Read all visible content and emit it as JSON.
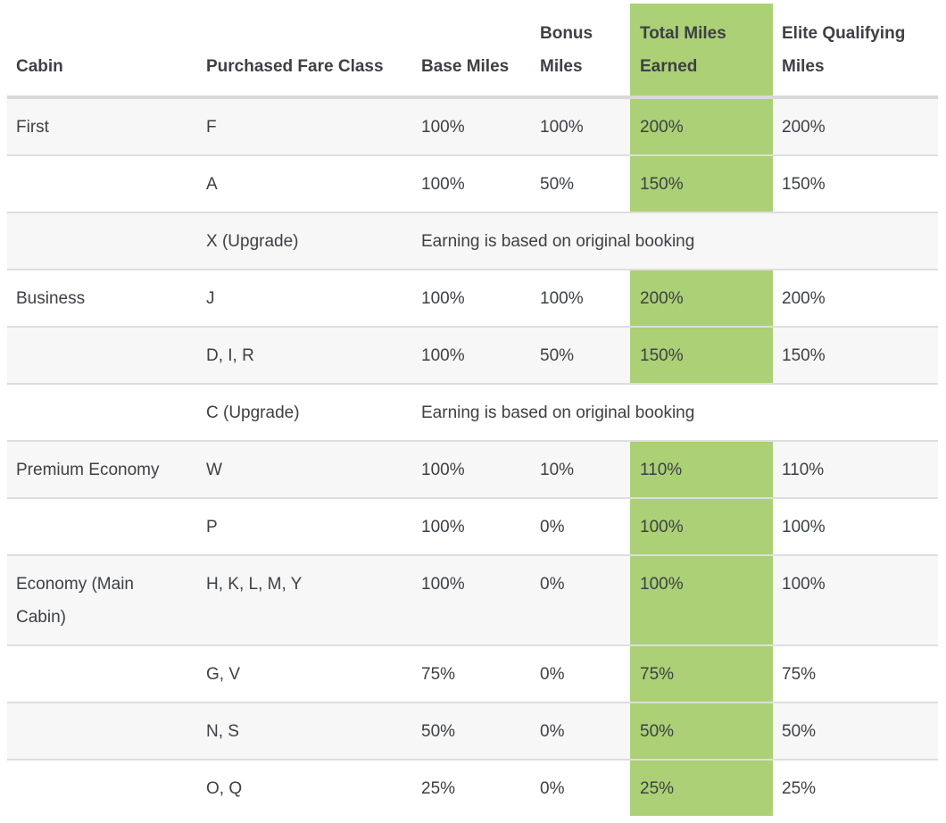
{
  "table": {
    "columns": [
      {
        "key": "cabin",
        "label": "Cabin"
      },
      {
        "key": "fare_class",
        "label": "Purchased Fare Class"
      },
      {
        "key": "base",
        "label": "Base Miles"
      },
      {
        "key": "bonus",
        "label": "Bonus Miles"
      },
      {
        "key": "total",
        "label": "Total Miles Earned",
        "highlighted": true
      },
      {
        "key": "eqm",
        "label": "Elite Qualifying Miles"
      }
    ],
    "rows": [
      {
        "cabin": "First",
        "fare_class": "F",
        "base": "100%",
        "bonus": "100%",
        "total": "200%",
        "eqm": "200%"
      },
      {
        "cabin": "",
        "fare_class": "A",
        "base": "100%",
        "bonus": "50%",
        "total": "150%",
        "eqm": "150%"
      },
      {
        "cabin": "",
        "fare_class": "X (Upgrade)",
        "note": "Earning is based on original booking"
      },
      {
        "cabin": "Business",
        "fare_class": "J",
        "base": "100%",
        "bonus": "100%",
        "total": "200%",
        "eqm": "200%"
      },
      {
        "cabin": "",
        "fare_class": "D, I, R",
        "base": "100%",
        "bonus": "50%",
        "total": "150%",
        "eqm": "150%"
      },
      {
        "cabin": "",
        "fare_class": "C (Upgrade)",
        "note": "Earning is based on original booking"
      },
      {
        "cabin": "Premium Economy",
        "fare_class": "W",
        "base": "100%",
        "bonus": "10%",
        "total": "110%",
        "eqm": "110%"
      },
      {
        "cabin": "",
        "fare_class": "P",
        "base": "100%",
        "bonus": "0%",
        "total": "100%",
        "eqm": "100%"
      },
      {
        "cabin": "Economy (Main Cabin)",
        "fare_class": "H, K, L, M, Y",
        "base": "100%",
        "bonus": "0%",
        "total": "100%",
        "eqm": "100%"
      },
      {
        "cabin": "",
        "fare_class": "G, V",
        "base": "75%",
        "bonus": "0%",
        "total": "75%",
        "eqm": "75%"
      },
      {
        "cabin": "",
        "fare_class": "N, S",
        "base": "50%",
        "bonus": "0%",
        "total": "50%",
        "eqm": "50%"
      },
      {
        "cabin": "",
        "fare_class": "O, Q",
        "base": "25%",
        "bonus": "0%",
        "total": "25%",
        "eqm": "25%"
      }
    ]
  },
  "colors": {
    "highlight": "#abd075",
    "row_alt": "#f7f7f7",
    "row_border": "#dedede",
    "header_border": "#d9d9d9",
    "text": "#3d4045"
  }
}
